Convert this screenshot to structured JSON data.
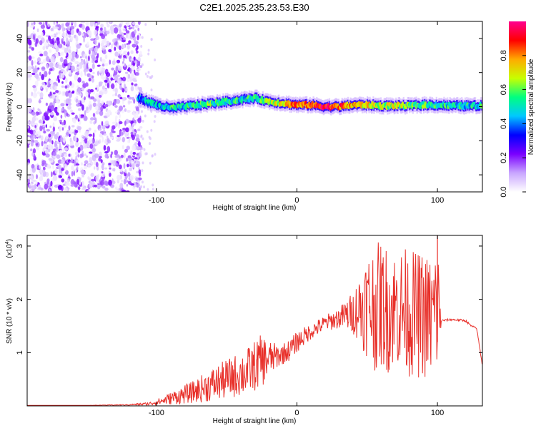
{
  "chart_data": [
    {
      "type": "heatmap",
      "title": "C2E1.2025.235.23.53.E30",
      "xlabel": "Height of straight line (km)",
      "ylabel": "Frequency (Hz)",
      "xlim": [
        -192,
        132
      ],
      "ylim": [
        -50,
        50
      ],
      "xticks": [
        -100,
        0,
        100
      ],
      "yticks": [
        -40,
        -20,
        0,
        20,
        40
      ],
      "colorbar": {
        "label": "Normalized spectral amplitude",
        "range": [
          0,
          1
        ],
        "ticks": [
          0.0,
          0.2,
          0.4,
          0.6,
          0.8
        ],
        "colors": [
          "#ffffff",
          "#c9a6ff",
          "#7a00ff",
          "#0000ff",
          "#00c8ff",
          "#00ff80",
          "#c8ff00",
          "#ffaa00",
          "#ff0000",
          "#ff0090"
        ]
      },
      "noise_region_x": [
        -192,
        -113
      ],
      "signal_track": {
        "x": [
          -113,
          -100,
          -90,
          -80,
          -70,
          -60,
          -50,
          -40,
          -30,
          -20,
          -10,
          0,
          10,
          20,
          30,
          40,
          50,
          60,
          70,
          80,
          90,
          100,
          110,
          120,
          132
        ],
        "freq": [
          5,
          1,
          -1,
          0,
          1,
          2,
          3,
          4,
          5,
          3,
          2,
          1,
          1,
          0,
          0,
          1,
          1,
          0.5,
          0.5,
          0.5,
          1,
          1,
          0.5,
          0.5,
          0.5
        ],
        "amplitude": [
          0.4,
          0.45,
          0.5,
          0.5,
          0.55,
          0.55,
          0.55,
          0.5,
          0.5,
          0.6,
          0.7,
          0.8,
          0.8,
          0.9,
          0.85,
          0.75,
          0.7,
          0.65,
          0.65,
          0.6,
          0.6,
          0.5,
          0.5,
          0.5,
          0.5
        ]
      }
    },
    {
      "type": "line",
      "xlabel": "Height of straight line (km)",
      "ylabel": "SNR (10 * v/v)",
      "yscale_label": "(x10",
      "yscale_exp": "4",
      "xlim": [
        -192,
        132
      ],
      "ylim": [
        0,
        3.2
      ],
      "xticks": [
        -100,
        0,
        100
      ],
      "yticks": [
        1,
        2,
        3
      ],
      "series": [
        {
          "name": "SNR",
          "color": "#e8302a",
          "x": [
            -192,
            -150,
            -120,
            -105,
            -95,
            -85,
            -75,
            -65,
            -55,
            -45,
            -35,
            -25,
            -18,
            -12,
            -5,
            0,
            10,
            20,
            30,
            40,
            45,
            50,
            55,
            60,
            65,
            70,
            75,
            80,
            85,
            90,
            95,
            98,
            100,
            103,
            110,
            120,
            124,
            128,
            132
          ],
          "y": [
            0.01,
            0.01,
            0.02,
            0.04,
            0.1,
            0.18,
            0.25,
            0.35,
            0.45,
            0.55,
            0.65,
            0.85,
            0.9,
            0.95,
            1.05,
            1.2,
            1.4,
            1.55,
            1.65,
            1.75,
            1.85,
            1.9,
            1.85,
            1.9,
            1.8,
            1.85,
            1.8,
            1.75,
            1.7,
            1.7,
            1.65,
            1.7,
            1.9,
            1.6,
            1.62,
            1.6,
            1.5,
            1.45,
            0.75
          ],
          "spread": [
            0.0,
            0.0,
            0.01,
            0.03,
            0.08,
            0.15,
            0.2,
            0.28,
            0.35,
            0.4,
            0.45,
            0.5,
            0.3,
            0.2,
            0.2,
            0.2,
            0.15,
            0.15,
            0.2,
            0.4,
            0.7,
            1.0,
            1.2,
            1.2,
            1.2,
            1.1,
            1.2,
            1.2,
            1.2,
            1.2,
            1.2,
            1.3,
            1.4,
            0.02,
            0.02,
            0.02,
            0.02,
            0.02,
            0.02
          ]
        }
      ]
    }
  ]
}
